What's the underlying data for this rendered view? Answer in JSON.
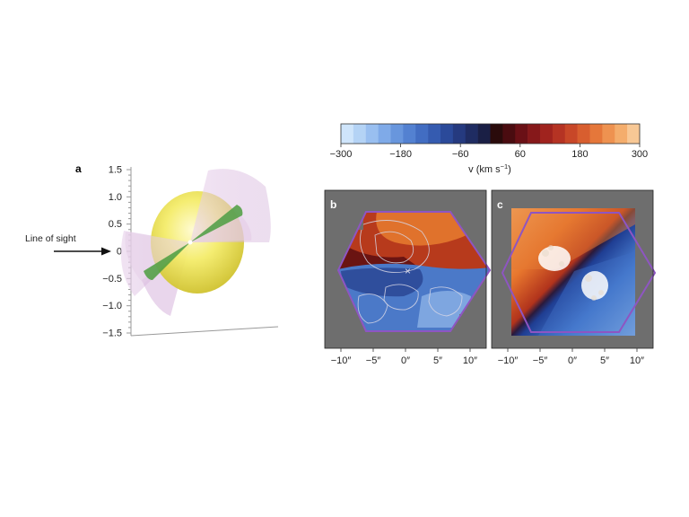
{
  "panel_a": {
    "letter": "a",
    "y_ticks": [
      "1.5",
      "1.0",
      "0.5",
      "0",
      "−0.5",
      "−1.0",
      "−1.5"
    ],
    "line_of_sight_label": "Line of sight"
  },
  "colorbar": {
    "ticks": [
      "−300",
      "−180",
      "−60",
      "60",
      "180",
      "300"
    ],
    "label_main": "v (km s",
    "label_sup": "−1",
    "label_close": ")",
    "colors": [
      "#cfe5fb",
      "#b4d3f5",
      "#99bff0",
      "#7faae8",
      "#6896dd",
      "#5381d1",
      "#426dc2",
      "#355bb0",
      "#2b4a9a",
      "#253a7f",
      "#1f2c62",
      "#1a1f45",
      "#2a0b0b",
      "#4a0c10",
      "#6a1016",
      "#86181a",
      "#a0231e",
      "#b53323",
      "#c84728",
      "#d85e2f",
      "#e5773a",
      "#ee9250",
      "#f4ad6c",
      "#f8c895"
    ]
  },
  "panel_b": {
    "letter": "b",
    "x_ticks": [
      "−10″",
      "−5″",
      "0″",
      "5″",
      "10″"
    ]
  },
  "panel_c": {
    "letter": "c",
    "x_ticks": [
      "−10″",
      "−5″",
      "0″",
      "5″",
      "10″"
    ]
  }
}
